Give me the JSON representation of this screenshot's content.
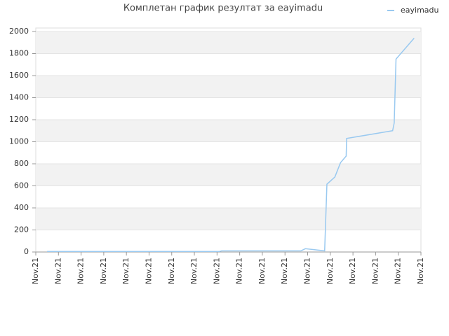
{
  "chart_data": {
    "type": "line",
    "title": "Комплетан график резултат за eayimadu",
    "x": [
      0.5,
      8.1,
      8.2,
      11.7,
      11.9,
      12.75,
      12.85,
      13.2,
      13.45,
      13.7,
      13.72,
      15.75,
      15.82,
      15.9,
      16.7
    ],
    "series": [
      {
        "name": "eayimadu",
        "color": "#99c9f0",
        "values": [
          5,
          5,
          10,
          10,
          30,
          10,
          615,
          680,
          810,
          870,
          1030,
          1100,
          1170,
          1750,
          1940
        ]
      }
    ],
    "xlim": [
      0,
      17
    ],
    "xticks": [
      {
        "value": 0,
        "label": "Nov.21"
      },
      {
        "value": 1,
        "label": "Nov.21"
      },
      {
        "value": 2,
        "label": "Nov.21"
      },
      {
        "value": 3,
        "label": "Nov.21"
      },
      {
        "value": 4,
        "label": "Nov.21"
      },
      {
        "value": 5,
        "label": "Nov.21"
      },
      {
        "value": 6,
        "label": "Nov.21"
      },
      {
        "value": 7,
        "label": "Nov.21"
      },
      {
        "value": 8,
        "label": "Nov.21"
      },
      {
        "value": 9,
        "label": "Nov.21"
      },
      {
        "value": 10,
        "label": "Nov.21"
      },
      {
        "value": 11,
        "label": "Nov.21"
      },
      {
        "value": 12,
        "label": "Nov.21"
      },
      {
        "value": 13,
        "label": "Nov.21"
      },
      {
        "value": 14,
        "label": "Nov.21"
      },
      {
        "value": 15,
        "label": "Nov.21"
      },
      {
        "value": 16,
        "label": "Nov.21"
      },
      {
        "value": 17,
        "label": "Nov.21"
      }
    ],
    "ylim": [
      0,
      2000
    ],
    "yticks": [
      0,
      200,
      400,
      600,
      800,
      1000,
      1200,
      1400,
      1600,
      1800,
      2000
    ],
    "grid": true,
    "legend": "top-right"
  }
}
